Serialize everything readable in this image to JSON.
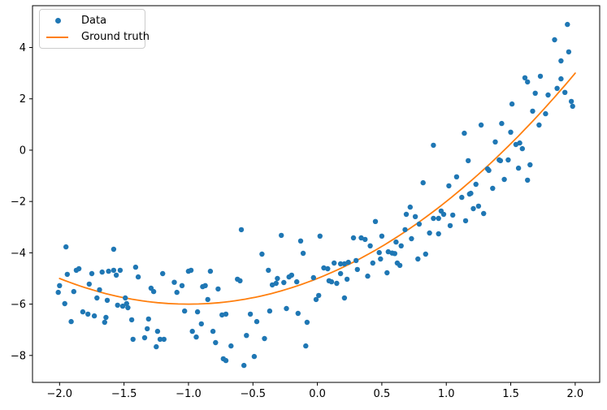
{
  "colors": {
    "scatter": "#1f77b4",
    "line": "#ff7f0e",
    "axis": "#000000",
    "tick_label": "#000000",
    "legend_border": "#cccccc",
    "background": "#ffffff"
  },
  "chart_data": {
    "type": "scatter",
    "title": "",
    "xlabel": "",
    "ylabel": "",
    "grid": false,
    "xlim": [
      -2.21,
      2.19
    ],
    "ylim": [
      -9.05,
      5.63
    ],
    "xticks": [
      -2.0,
      -1.5,
      -1.0,
      -0.5,
      0.0,
      0.5,
      1.0,
      1.5,
      2.0
    ],
    "xtick_labels": [
      "−2.0",
      "−1.5",
      "−1.0",
      "−0.5",
      "0.0",
      "0.5",
      "1.0",
      "1.5",
      "2.0"
    ],
    "yticks": [
      4,
      2,
      0,
      -2,
      -4,
      -6,
      -8
    ],
    "ytick_labels": [
      "4",
      "2",
      "0",
      "−2",
      "−4",
      "−6",
      "−8"
    ],
    "legend": {
      "position": "upper left",
      "items": [
        {
          "label": "Data",
          "type": "marker",
          "color": "#1f77b4"
        },
        {
          "label": "Ground truth",
          "type": "line",
          "color": "#ff7f0e"
        }
      ]
    },
    "series": [
      {
        "name": "Data",
        "type": "scatter",
        "color": "#1f77b4",
        "marker_radius": 3.2,
        "points": [
          [
            -1.95,
            -3.77
          ],
          [
            -1.58,
            -3.86
          ],
          [
            -1.94,
            -4.84
          ],
          [
            -1.87,
            -4.68
          ],
          [
            -1.85,
            -4.62
          ],
          [
            -1.75,
            -4.81
          ],
          [
            -1.67,
            -4.75
          ],
          [
            -1.62,
            -4.72
          ],
          [
            -1.58,
            -4.68
          ],
          [
            -1.53,
            -4.68
          ],
          [
            -1.56,
            -4.87
          ],
          [
            -1.41,
            -4.56
          ],
          [
            -1.39,
            -4.94
          ],
          [
            -1.2,
            -4.81
          ],
          [
            -1.11,
            -5.15
          ],
          [
            -2.0,
            -5.28
          ],
          [
            -1.77,
            -5.22
          ],
          [
            -1.69,
            -5.44
          ],
          [
            -2.01,
            -5.54
          ],
          [
            -1.89,
            -5.51
          ],
          [
            -1.71,
            -5.76
          ],
          [
            -1.63,
            -5.85
          ],
          [
            -1.29,
            -5.38
          ],
          [
            -1.27,
            -5.51
          ],
          [
            -1.96,
            -5.98
          ],
          [
            -1.49,
            -5.76
          ],
          [
            -1.55,
            -6.04
          ],
          [
            -1.51,
            -6.08
          ],
          [
            -1.48,
            -5.98
          ],
          [
            -1.47,
            -6.14
          ],
          [
            -1.82,
            -6.3
          ],
          [
            -1.78,
            -6.39
          ],
          [
            -1.73,
            -6.46
          ],
          [
            -1.64,
            -6.52
          ],
          [
            -1.91,
            -6.68
          ],
          [
            -1.65,
            -6.71
          ],
          [
            -1.44,
            -6.61
          ],
          [
            -1.31,
            -6.58
          ],
          [
            -1.32,
            -6.96
          ],
          [
            -1.24,
            -7.06
          ],
          [
            -1.43,
            -7.37
          ],
          [
            -1.34,
            -7.31
          ],
          [
            -1.22,
            -7.37
          ],
          [
            -1.19,
            -7.37
          ],
          [
            -1.25,
            -7.66
          ],
          [
            -0.59,
            -3.1
          ],
          [
            -0.28,
            -3.32
          ],
          [
            0.02,
            -3.35
          ],
          [
            -0.13,
            -3.54
          ],
          [
            -0.11,
            -4.02
          ],
          [
            -0.43,
            -4.05
          ],
          [
            -1.0,
            -4.72
          ],
          [
            -0.98,
            -4.68
          ],
          [
            -0.83,
            -4.72
          ],
          [
            -0.38,
            -4.68
          ],
          [
            -1.05,
            -5.28
          ],
          [
            -1.09,
            -5.54
          ],
          [
            -0.89,
            -5.32
          ],
          [
            -0.87,
            -5.28
          ],
          [
            -0.77,
            -5.41
          ],
          [
            -0.62,
            -5.03
          ],
          [
            -0.6,
            -5.09
          ],
          [
            -0.35,
            -5.25
          ],
          [
            -0.32,
            -5.19
          ],
          [
            -0.31,
            -5.0
          ],
          [
            -0.26,
            -5.16
          ],
          [
            -0.22,
            -4.94
          ],
          [
            -0.2,
            -4.87
          ],
          [
            -0.16,
            -5.13
          ],
          [
            -0.03,
            -4.97
          ],
          [
            0.01,
            -5.66
          ],
          [
            -0.01,
            -5.82
          ],
          [
            -0.85,
            -5.82
          ],
          [
            -1.03,
            -6.27
          ],
          [
            -0.93,
            -6.3
          ],
          [
            -0.37,
            -6.27
          ],
          [
            -0.24,
            -6.17
          ],
          [
            -0.15,
            -6.36
          ],
          [
            -0.74,
            -6.42
          ],
          [
            -0.71,
            -6.39
          ],
          [
            -0.52,
            -6.39
          ],
          [
            -0.9,
            -6.77
          ],
          [
            -0.47,
            -6.68
          ],
          [
            -0.08,
            -6.71
          ],
          [
            -0.97,
            -7.06
          ],
          [
            -0.94,
            -7.28
          ],
          [
            -0.81,
            -7.06
          ],
          [
            -0.55,
            -7.22
          ],
          [
            -0.41,
            -7.34
          ],
          [
            -0.79,
            -7.5
          ],
          [
            -0.67,
            -7.63
          ],
          [
            -0.09,
            -7.63
          ],
          [
            -0.73,
            -8.13
          ],
          [
            -0.71,
            -8.2
          ],
          [
            -0.49,
            -8.04
          ],
          [
            -0.57,
            -8.39
          ],
          [
            0.72,
            -2.22
          ],
          [
            0.69,
            -2.5
          ],
          [
            0.76,
            -2.59
          ],
          [
            0.96,
            -2.37
          ],
          [
            0.98,
            -2.5
          ],
          [
            0.9,
            -2.66
          ],
          [
            0.94,
            -2.66
          ],
          [
            1.05,
            -2.53
          ],
          [
            0.79,
            -2.88
          ],
          [
            1.03,
            -2.94
          ],
          [
            0.45,
            -2.78
          ],
          [
            0.68,
            -3.1
          ],
          [
            0.87,
            -3.23
          ],
          [
            0.94,
            -3.26
          ],
          [
            0.28,
            -3.42
          ],
          [
            0.34,
            -3.42
          ],
          [
            0.37,
            -3.48
          ],
          [
            0.5,
            -3.35
          ],
          [
            0.61,
            -3.58
          ],
          [
            0.73,
            -3.45
          ],
          [
            0.41,
            -3.73
          ],
          [
            0.65,
            -3.73
          ],
          [
            0.55,
            -3.96
          ],
          [
            0.58,
            -4.01
          ],
          [
            0.6,
            -4.03
          ],
          [
            0.48,
            -3.99
          ],
          [
            0.49,
            -4.24
          ],
          [
            0.78,
            -4.24
          ],
          [
            0.84,
            -4.05
          ],
          [
            0.43,
            -4.4
          ],
          [
            0.62,
            -4.4
          ],
          [
            0.64,
            -4.49
          ],
          [
            0.13,
            -4.4
          ],
          [
            0.18,
            -4.43
          ],
          [
            0.21,
            -4.43
          ],
          [
            0.24,
            -4.37
          ],
          [
            0.3,
            -4.3
          ],
          [
            0.05,
            -4.59
          ],
          [
            0.08,
            -4.62
          ],
          [
            0.18,
            -4.81
          ],
          [
            0.31,
            -4.65
          ],
          [
            0.54,
            -4.78
          ],
          [
            0.39,
            -4.91
          ],
          [
            0.23,
            -5.03
          ],
          [
            0.09,
            -5.09
          ],
          [
            0.11,
            -5.13
          ],
          [
            0.15,
            -5.19
          ],
          [
            0.21,
            -5.76
          ],
          [
            1.27,
            0.98
          ],
          [
            1.43,
            1.04
          ],
          [
            1.72,
            0.98
          ],
          [
            1.14,
            0.66
          ],
          [
            1.5,
            0.7
          ],
          [
            1.38,
            0.32
          ],
          [
            1.54,
            0.22
          ],
          [
            1.57,
            0.28
          ],
          [
            1.59,
            0.06
          ],
          [
            1.17,
            -0.41
          ],
          [
            1.32,
            -0.73
          ],
          [
            1.33,
            -0.79
          ],
          [
            1.41,
            -0.38
          ],
          [
            1.42,
            -0.41
          ],
          [
            1.48,
            -0.38
          ],
          [
            1.56,
            -0.7
          ],
          [
            1.65,
            -0.57
          ],
          [
            1.63,
            -1.17
          ],
          [
            1.45,
            -1.14
          ],
          [
            1.36,
            -1.49
          ],
          [
            1.23,
            -1.33
          ],
          [
            1.08,
            -1.04
          ],
          [
            1.18,
            -1.71
          ],
          [
            1.19,
            -1.68
          ],
          [
            1.25,
            -2.18
          ],
          [
            1.21,
            -2.28
          ],
          [
            1.29,
            -2.47
          ],
          [
            1.15,
            -2.75
          ],
          [
            0.9,
            0.19
          ],
          [
            0.82,
            -1.27
          ],
          [
            1.02,
            -1.39
          ],
          [
            1.12,
            -1.84
          ],
          [
            1.94,
            4.9
          ],
          [
            1.84,
            4.3
          ],
          [
            1.95,
            3.83
          ],
          [
            1.89,
            3.48
          ],
          [
            1.73,
            2.88
          ],
          [
            1.61,
            2.82
          ],
          [
            1.63,
            2.66
          ],
          [
            1.89,
            2.78
          ],
          [
            1.86,
            2.41
          ],
          [
            1.92,
            2.25
          ],
          [
            1.69,
            2.22
          ],
          [
            1.79,
            2.15
          ],
          [
            1.97,
            1.9
          ],
          [
            1.98,
            1.71
          ],
          [
            1.51,
            1.8
          ],
          [
            1.77,
            1.42
          ],
          [
            1.67,
            1.52
          ]
        ]
      },
      {
        "name": "Ground truth",
        "type": "line",
        "color": "#ff7f0e",
        "line_width": 1.8,
        "polynomial_coefficients_desc": [
          1,
          2,
          -5
        ],
        "equation": "y = x^2 + 2x - 5",
        "x_range": [
          -2.0,
          2.0
        ]
      }
    ]
  }
}
